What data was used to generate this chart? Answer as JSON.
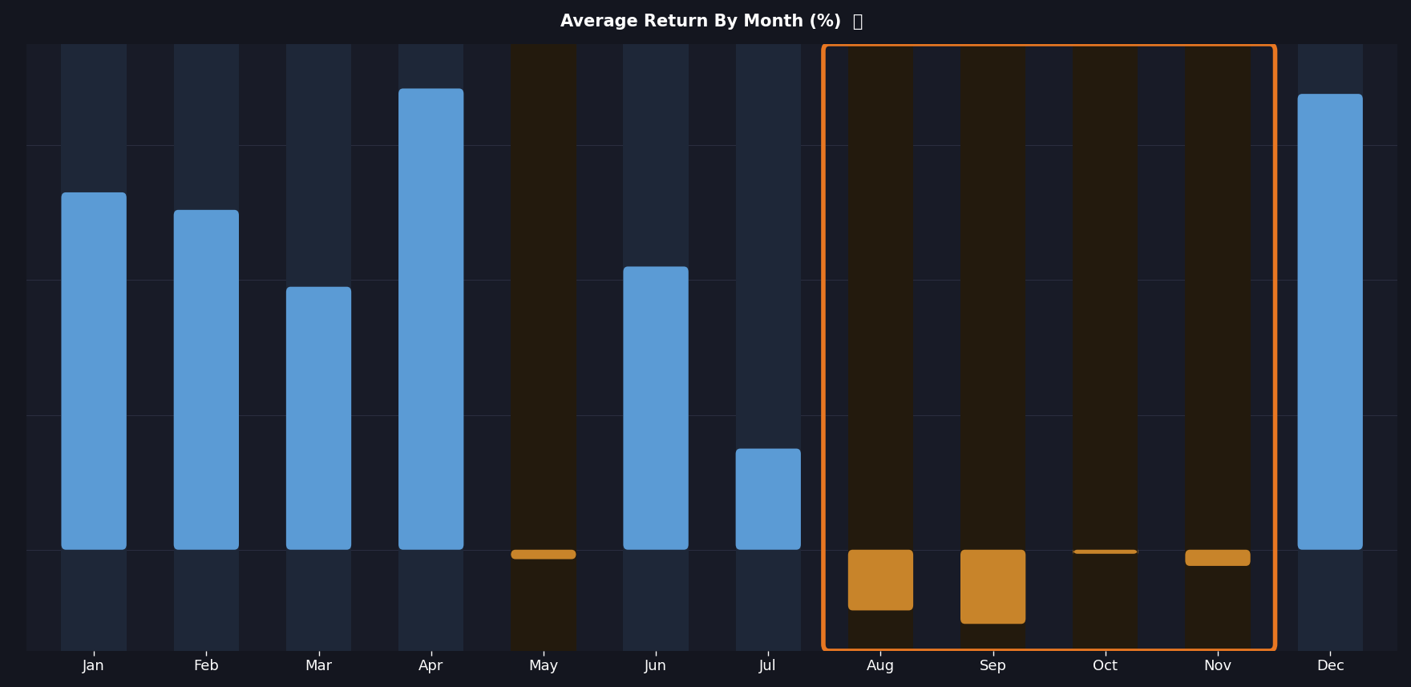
{
  "months": [
    "Jan",
    "Feb",
    "Mar",
    "Apr",
    "May",
    "Jun",
    "Jul",
    "Aug",
    "Sep",
    "Oct",
    "Nov",
    "Dec"
  ],
  "values": [
    2.65,
    2.52,
    1.95,
    3.42,
    -0.07,
    2.1,
    0.75,
    -0.45,
    -0.55,
    -0.03,
    -0.12,
    3.38
  ],
  "bar_colors": {
    "positive": "#5B9BD5",
    "negative": "#C8842A"
  },
  "bg_bar_positive": "#1e2738",
  "bg_bar_negative": "#231a0d",
  "highlight_months": [
    "Aug",
    "Sep",
    "Oct",
    "Nov"
  ],
  "highlight_box_color": "#E87722",
  "background_color": "#14161f",
  "plot_bg_color": "#181b27",
  "grid_color": "#2a2d3e",
  "text_color": "#FFFFFF",
  "title": "Average Return By Month (%)",
  "ylim": [
    -0.75,
    3.75
  ],
  "yticks": [
    0,
    1,
    2,
    3
  ],
  "bar_width": 0.58,
  "title_fontsize": 15,
  "tick_fontsize": 13,
  "xlim_left": -0.6,
  "xlim_right": 11.6
}
